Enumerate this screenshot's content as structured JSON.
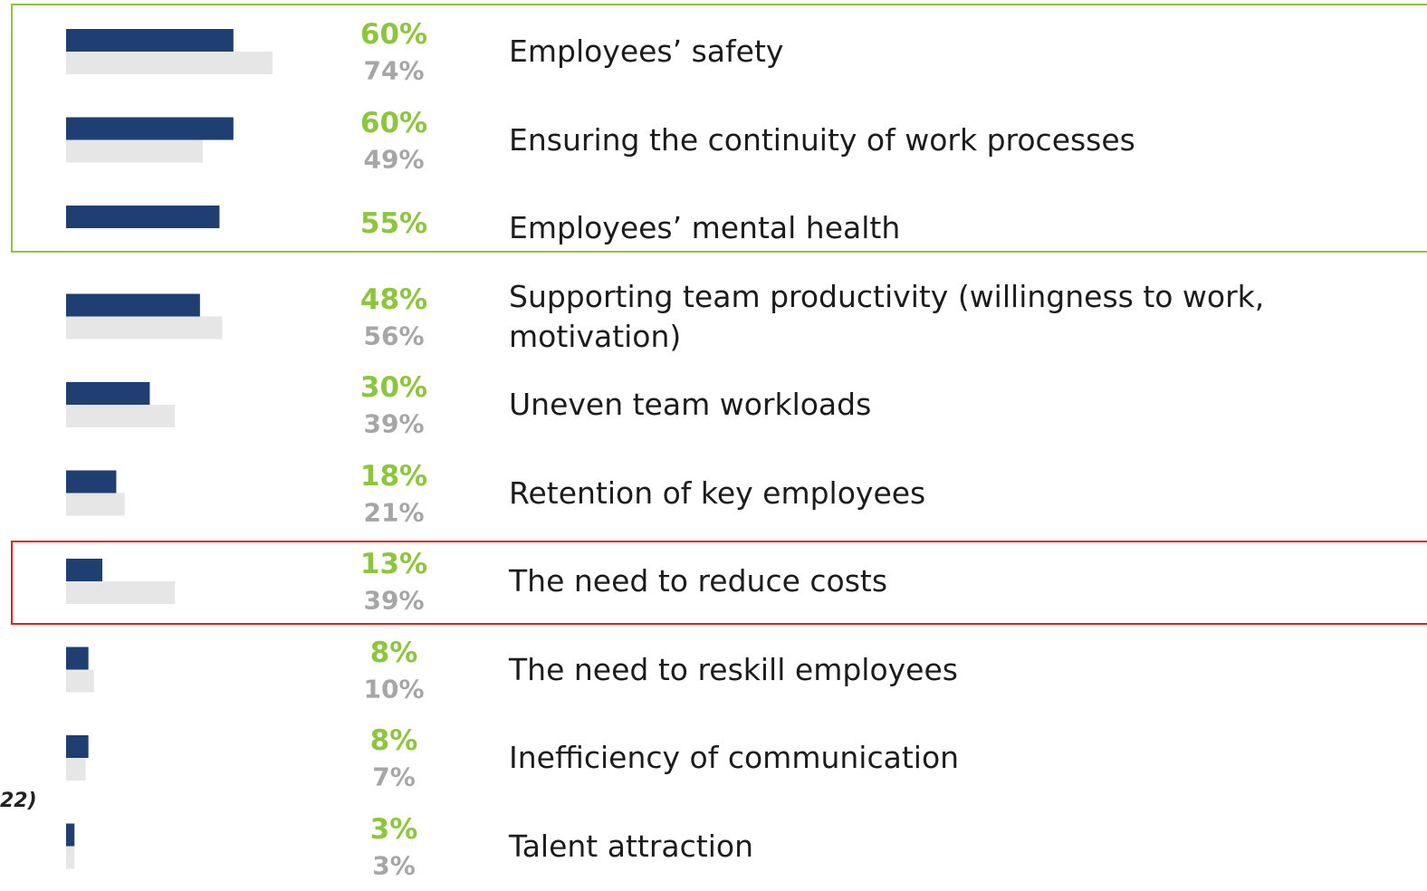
{
  "chart_data": {
    "type": "bar",
    "orientation": "horizontal",
    "categories": [
      "Employees’ safety",
      "Ensuring the continuity of work processes",
      "Employees’ mental health",
      "Supporting team productivity (willingness to work, motivation)",
      "Uneven team workloads",
      "Retention of key employees",
      "The need to reduce costs",
      "The need to reskill employees",
      "Inefficiency of communication",
      "Talent attraction"
    ],
    "series": [
      {
        "color": "#1f3f73",
        "label_color": "#8cc63e",
        "values": [
          60,
          60,
          55,
          48,
          30,
          18,
          13,
          8,
          8,
          3
        ],
        "value_labels": [
          "60%",
          "60%",
          "55%",
          "48%",
          "30%",
          "18%",
          "13%",
          "8%",
          "8%",
          "3%"
        ]
      },
      {
        "color": "#e6e6e6",
        "label_color": "#a6a6a6",
        "values": [
          74,
          49,
          null,
          56,
          39,
          21,
          39,
          10,
          7,
          3
        ],
        "value_labels": [
          "74%",
          "49%",
          null,
          "56%",
          "39%",
          "21%",
          "39%",
          "10%",
          "7%",
          "3%"
        ]
      }
    ],
    "note": "22)"
  }
}
